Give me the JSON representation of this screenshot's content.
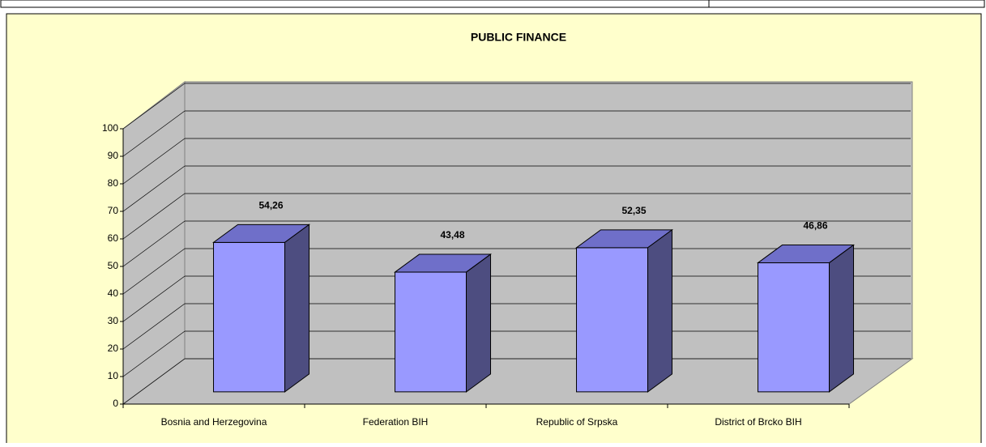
{
  "chart_data": {
    "type": "bar3d",
    "title": "PUBLIC FINANCE",
    "categories": [
      "Bosnia and Herzegovina",
      "Federation BIH",
      "Republic of Srpska",
      "District of Brcko BIH"
    ],
    "values": [
      54.26,
      43.48,
      52.35,
      46.86
    ],
    "value_labels": [
      "54,26",
      "43,48",
      "52,35",
      "46,86"
    ],
    "color": "#9999ff",
    "ylim": [
      0,
      100
    ],
    "yticks": [
      0,
      10,
      20,
      30,
      40,
      50,
      60,
      70,
      80,
      90,
      100
    ],
    "grid": true
  }
}
